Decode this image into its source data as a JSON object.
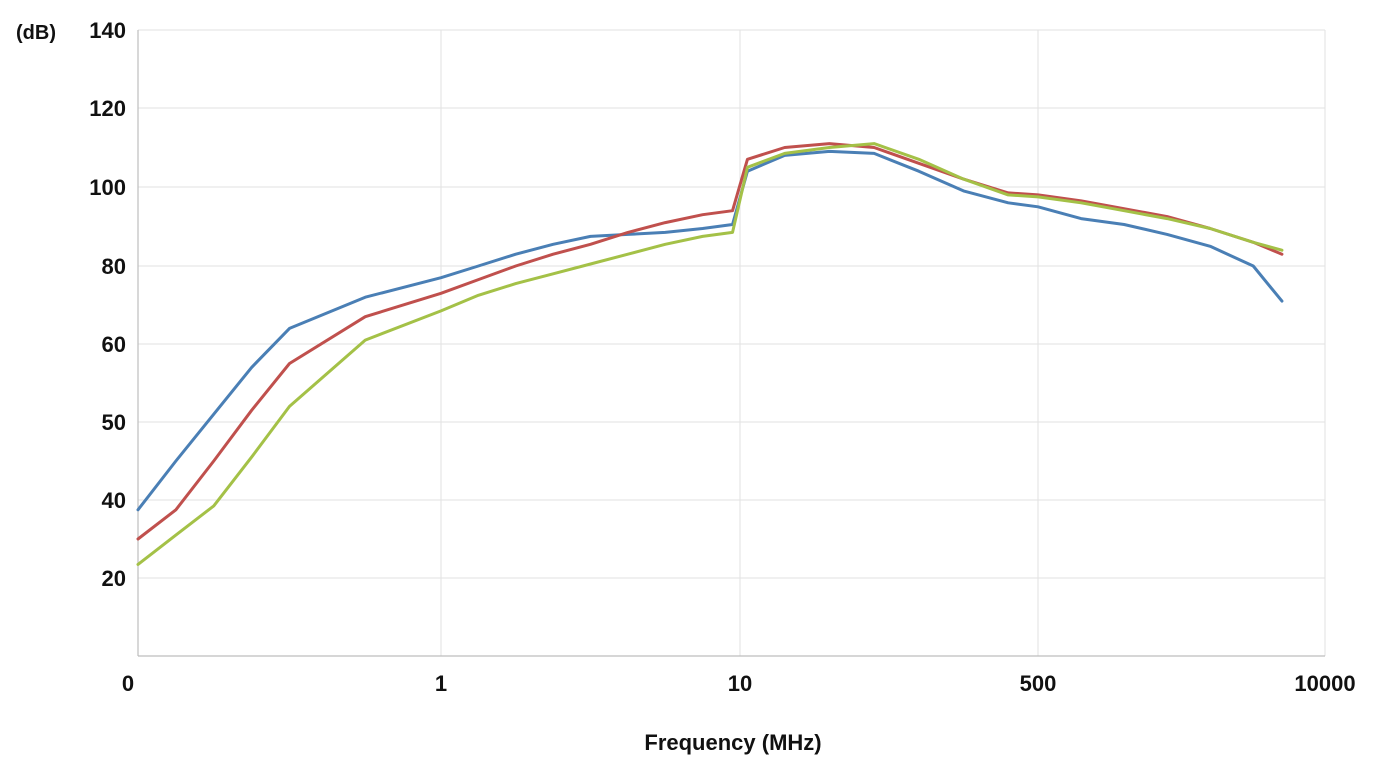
{
  "chart_data": {
    "type": "line",
    "title": "",
    "xlabel": "Frequency (MHz)",
    "ylabel": "(dB)",
    "x_tick_labels": [
      "0",
      "1",
      "10",
      "500",
      "10000"
    ],
    "y_tick_labels": [
      "20",
      "40",
      "50",
      "60",
      "80",
      "100",
      "120",
      "140"
    ],
    "grid": true,
    "legend": "none",
    "series": [
      {
        "color": "#4a7fb5",
        "points": [
          [
            0,
            37.5
          ],
          [
            0.25,
            45
          ],
          [
            0.5,
            51
          ],
          [
            0.75,
            57
          ],
          [
            1,
            64
          ],
          [
            1.5,
            72
          ],
          [
            2,
            77
          ],
          [
            2.25,
            80
          ],
          [
            2.5,
            83
          ],
          [
            2.75,
            85.5
          ],
          [
            3,
            87.5
          ],
          [
            3.25,
            88
          ],
          [
            3.5,
            88.5
          ],
          [
            3.75,
            89.5
          ],
          [
            3.95,
            90.5
          ],
          [
            4.05,
            104
          ],
          [
            4.3,
            108
          ],
          [
            4.6,
            109
          ],
          [
            4.9,
            108.5
          ],
          [
            5.2,
            104
          ],
          [
            5.5,
            99
          ],
          [
            5.8,
            96
          ],
          [
            6,
            95
          ],
          [
            6.3,
            92
          ],
          [
            6.6,
            90.5
          ],
          [
            6.9,
            88
          ],
          [
            7.2,
            85
          ],
          [
            7.5,
            80
          ],
          [
            7.7,
            71
          ]
        ]
      },
      {
        "color": "#c0504d",
        "points": [
          [
            0,
            30
          ],
          [
            0.25,
            37.5
          ],
          [
            0.5,
            45
          ],
          [
            0.75,
            51.5
          ],
          [
            1,
            57.5
          ],
          [
            1.5,
            67
          ],
          [
            2,
            73
          ],
          [
            2.25,
            76.5
          ],
          [
            2.5,
            80
          ],
          [
            2.75,
            83
          ],
          [
            3,
            85.5
          ],
          [
            3.25,
            88.5
          ],
          [
            3.5,
            91
          ],
          [
            3.75,
            93
          ],
          [
            3.95,
            94
          ],
          [
            4.05,
            107
          ],
          [
            4.3,
            110
          ],
          [
            4.6,
            111
          ],
          [
            4.9,
            110
          ],
          [
            5.2,
            106
          ],
          [
            5.5,
            102
          ],
          [
            5.8,
            98.5
          ],
          [
            6,
            98
          ],
          [
            6.3,
            96.5
          ],
          [
            6.6,
            94.5
          ],
          [
            6.9,
            92.5
          ],
          [
            7.2,
            89.5
          ],
          [
            7.5,
            86
          ],
          [
            7.7,
            83
          ]
        ]
      },
      {
        "color": "#a4c147",
        "points": [
          [
            0,
            23.5
          ],
          [
            0.25,
            31
          ],
          [
            0.5,
            38.5
          ],
          [
            0.75,
            45.5
          ],
          [
            1,
            52
          ],
          [
            1.5,
            61
          ],
          [
            2,
            68.5
          ],
          [
            2.25,
            72.5
          ],
          [
            2.5,
            75.5
          ],
          [
            2.75,
            78
          ],
          [
            3,
            80.5
          ],
          [
            3.25,
            83
          ],
          [
            3.5,
            85.5
          ],
          [
            3.75,
            87.5
          ],
          [
            3.95,
            88.5
          ],
          [
            4.05,
            105
          ],
          [
            4.3,
            108.5
          ],
          [
            4.6,
            110
          ],
          [
            4.9,
            111
          ],
          [
            5.2,
            107
          ],
          [
            5.5,
            102
          ],
          [
            5.8,
            98
          ],
          [
            6,
            97.5
          ],
          [
            6.3,
            96
          ],
          [
            6.6,
            94
          ],
          [
            6.9,
            92
          ],
          [
            7.2,
            89.5
          ],
          [
            7.5,
            86
          ],
          [
            7.7,
            84
          ]
        ]
      }
    ]
  }
}
